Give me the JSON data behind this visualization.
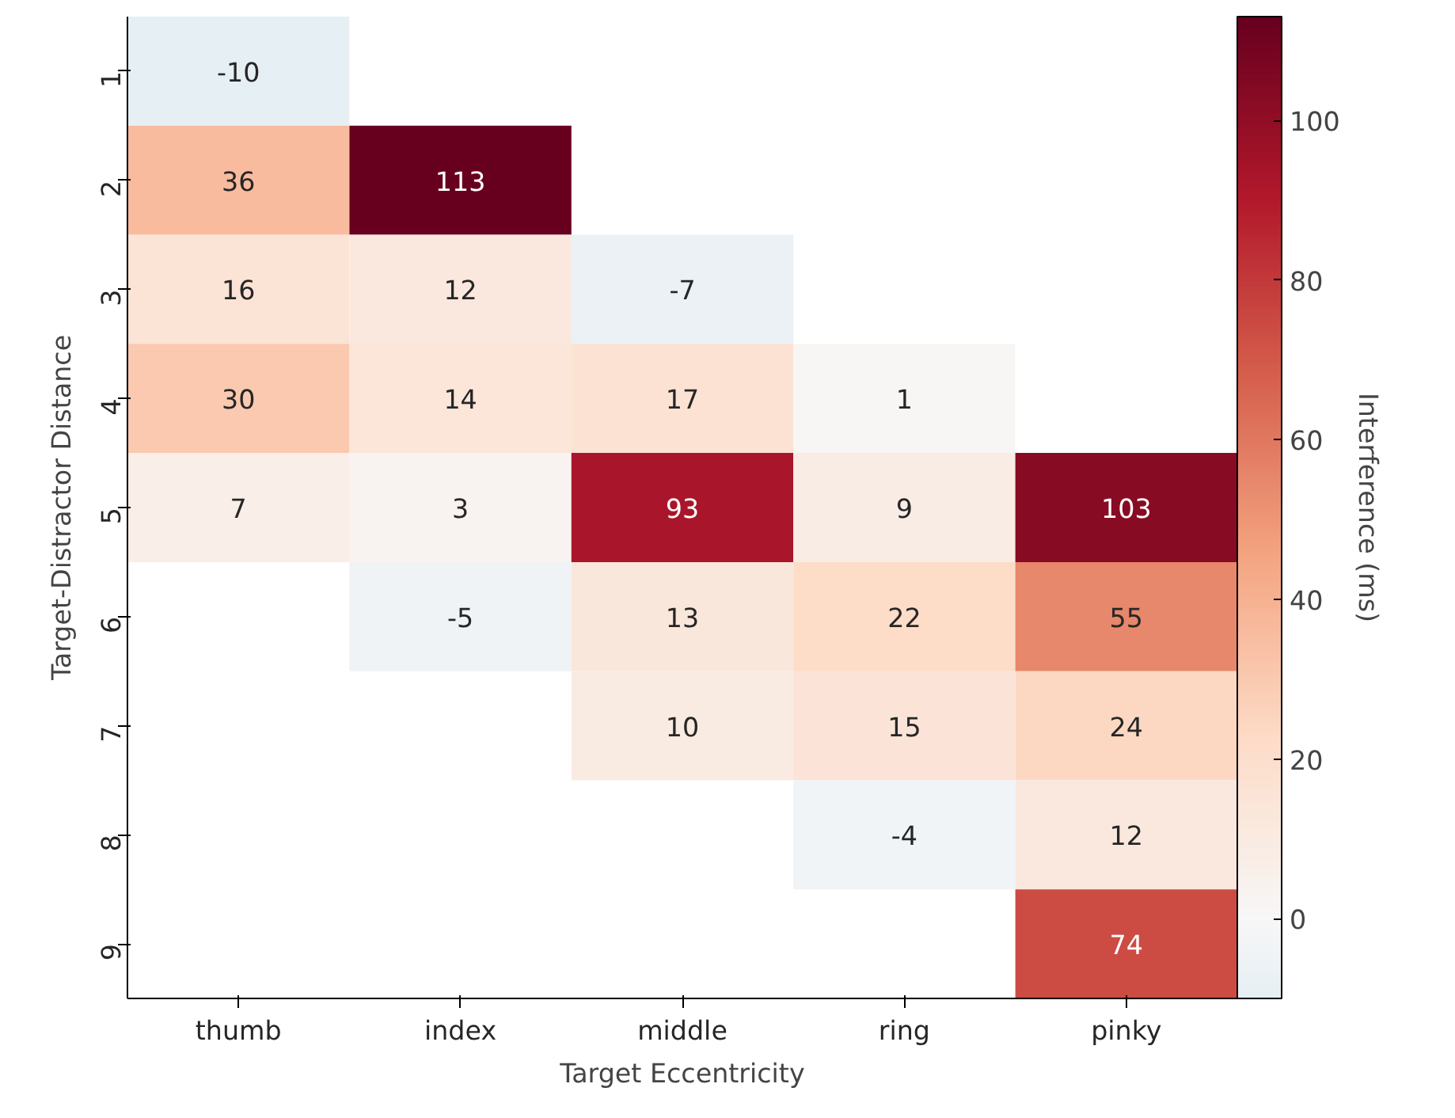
{
  "chart_data": {
    "type": "heatmap",
    "xlabel": "Target Eccentricity",
    "ylabel": "Target-Distractor Distance",
    "clabel": "Interference (ms)",
    "categories": [
      "thumb",
      "index",
      "middle",
      "ring",
      "pinky"
    ],
    "y_categories": [
      "1",
      "2",
      "3",
      "4",
      "5",
      "6",
      "7",
      "8",
      "9"
    ],
    "cells": [
      [
        -10,
        null,
        null,
        null,
        null
      ],
      [
        36,
        113,
        null,
        null,
        null
      ],
      [
        16,
        12,
        -7,
        null,
        null
      ],
      [
        30,
        14,
        17,
        1,
        null
      ],
      [
        7,
        3,
        93,
        9,
        103
      ],
      [
        null,
        -5,
        13,
        22,
        55
      ],
      [
        null,
        null,
        10,
        15,
        24
      ],
      [
        null,
        null,
        null,
        -4,
        12
      ],
      [
        null,
        null,
        null,
        null,
        74
      ]
    ],
    "clim": [
      -10,
      113
    ],
    "cticks": [
      0,
      20,
      40,
      60,
      80,
      100
    ],
    "data_labels": true,
    "grid": false
  }
}
